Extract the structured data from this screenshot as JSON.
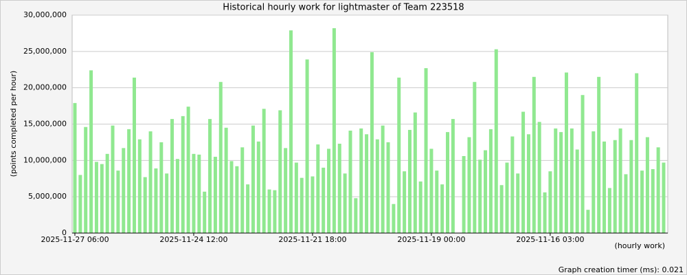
{
  "chart_data": {
    "type": "bar",
    "title": "Historical hourly work for lightmaster of Team 223518",
    "y_label": "(points completed per hour)",
    "x_label": "(hourly work)",
    "footer": "Graph creation timer (ms): 0.021",
    "color": "#90e890",
    "grid": true,
    "ylim": [
      0,
      30000000
    ],
    "yticks": [
      0,
      {
        "value": 5000000,
        "label": "5,000,000"
      },
      {
        "value": 10000000,
        "label": "10,000,000"
      },
      {
        "value": 15000000,
        "label": "15,000,000"
      },
      {
        "value": 20000000,
        "label": "20,000,000"
      },
      {
        "value": 25000000,
        "label": "25,000,000"
      },
      {
        "value": 30000000,
        "label": "30,000,000"
      }
    ],
    "categories": [
      "2025-11-27 06:00",
      null,
      null,
      null,
      null,
      null,
      null,
      null,
      null,
      null,
      null,
      null,
      null,
      null,
      null,
      null,
      null,
      null,
      null,
      null,
      null,
      null,
      "2025-11-24 12:00",
      null,
      null,
      null,
      null,
      null,
      null,
      null,
      null,
      null,
      null,
      null,
      null,
      null,
      null,
      null,
      null,
      null,
      null,
      null,
      null,
      null,
      "2025-11-21 18:00",
      null,
      null,
      null,
      null,
      null,
      null,
      null,
      null,
      null,
      null,
      null,
      null,
      null,
      null,
      null,
      null,
      null,
      null,
      null,
      null,
      null,
      "2025-11-19 00:00",
      null,
      null,
      null,
      null,
      null,
      null,
      null,
      null,
      null,
      null,
      null,
      null,
      null,
      null,
      null,
      null,
      null,
      null,
      null,
      null,
      null,
      "2025-11-16 03:00",
      null,
      null,
      null,
      null,
      null,
      null,
      null,
      null,
      null,
      null,
      null,
      null,
      null,
      null,
      null,
      null,
      null,
      null,
      null,
      null,
      null
    ],
    "values": [
      17900000,
      8000000,
      14600000,
      22400000,
      9800000,
      9500000,
      10900000,
      14800000,
      8600000,
      11700000,
      14300000,
      21400000,
      12900000,
      7700000,
      14000000,
      8900000,
      12500000,
      8200000,
      15700000,
      10200000,
      16100000,
      17400000,
      10900000,
      10800000,
      5700000,
      15700000,
      10500000,
      20800000,
      14500000,
      9900000,
      9200000,
      11800000,
      6700000,
      14800000,
      12600000,
      17100000,
      6000000,
      5900000,
      16900000,
      11700000,
      27900000,
      9700000,
      7600000,
      23900000,
      7800000,
      12200000,
      9000000,
      11600000,
      28200000,
      12300000,
      8200000,
      14100000,
      4800000,
      14400000,
      13600000,
      24900000,
      12900000,
      14800000,
      12500000,
      4000000,
      21400000,
      8500000,
      14200000,
      16600000,
      7100000,
      22700000,
      11600000,
      8600000,
      6700000,
      13900000,
      15700000,
      0,
      10600000,
      13200000,
      20800000,
      10100000,
      11400000,
      14300000,
      25300000,
      6600000,
      9700000,
      13300000,
      8200000,
      16700000,
      13600000,
      21500000,
      15300000,
      5600000,
      8500000,
      14400000,
      13900000,
      22100000,
      14400000,
      11500000,
      19000000,
      3200000,
      14000000,
      21500000,
      12600000,
      6200000,
      12800000,
      14400000,
      8100000,
      12800000,
      22000000,
      8600000,
      13200000,
      8800000,
      11800000,
      9700000
    ]
  }
}
